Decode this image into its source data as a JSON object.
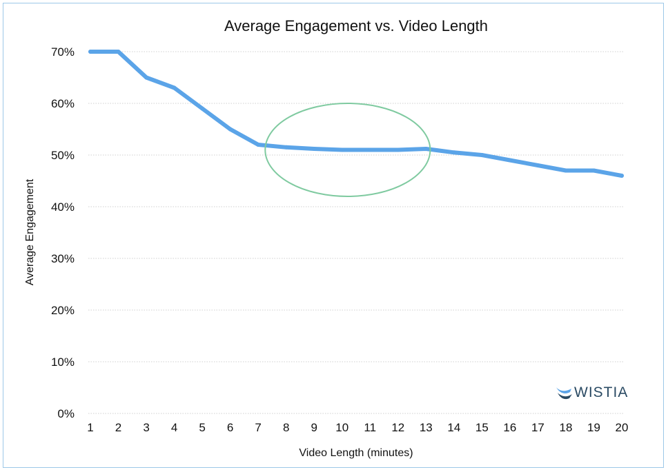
{
  "chart_data": {
    "type": "line",
    "title": "Average Engagement vs. Video Length",
    "xlabel": "Video Length (minutes)",
    "ylabel": "Average Engagement",
    "x": [
      1,
      2,
      3,
      4,
      5,
      6,
      7,
      8,
      9,
      10,
      11,
      12,
      13,
      14,
      15,
      16,
      17,
      18,
      19,
      20
    ],
    "x_tick_labels": [
      "1",
      "2",
      "3",
      "4",
      "5",
      "6",
      "7",
      "8",
      "9",
      "10",
      "11",
      "12",
      "13",
      "14",
      "15",
      "16",
      "17",
      "18",
      "19",
      "20"
    ],
    "series": [
      {
        "values": [
          70,
          70,
          65,
          63,
          59,
          55,
          52,
          51.5,
          51.2,
          51,
          51,
          51,
          51.2,
          50.5,
          50,
          49,
          48,
          47,
          47,
          46
        ],
        "color": "#5ba4e8"
      }
    ],
    "y_ticks": [
      0,
      10,
      20,
      30,
      40,
      50,
      60,
      70
    ],
    "y_tick_labels": [
      "0%",
      "10%",
      "20%",
      "30%",
      "40%",
      "50%",
      "60%",
      "70%"
    ],
    "ylim": [
      0,
      70
    ],
    "xlim": [
      1,
      20
    ],
    "grid": "horizontal",
    "annotation": {
      "shape": "ellipse",
      "center_x": 10.2,
      "center_y": 51,
      "half_width_x": 2.95,
      "half_height_y": 9,
      "color": "#7fcaa0"
    }
  },
  "brand": {
    "name": "WISTIA",
    "icon": "wistia-logo-icon",
    "color": "#2a4a63",
    "accent": "#5ba4e8"
  }
}
